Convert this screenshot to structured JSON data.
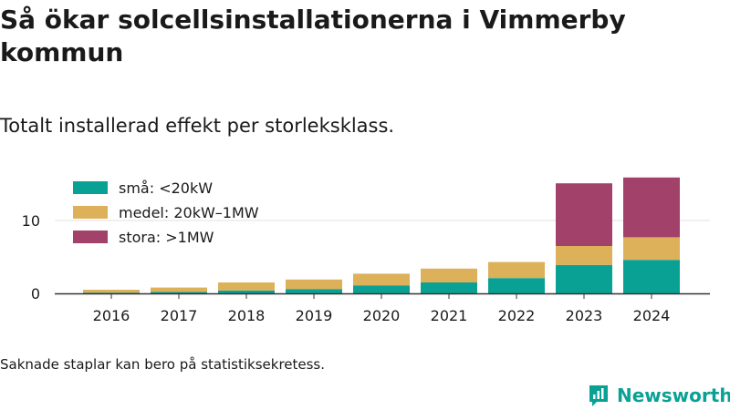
{
  "header": {
    "title": "Så ökar solcellsinstallationerna i Vimmerby kommun",
    "subtitle": "Totalt installerad effekt per storleksklass."
  },
  "footer": {
    "note": "Saknade staplar kan bero på statistiksekretess.",
    "brand": "Newsworthy"
  },
  "colors": {
    "small": "#0aa195",
    "medium": "#ddb05a",
    "large": "#a2426a"
  },
  "chart_data": {
    "type": "bar",
    "stacked": true,
    "categories": [
      "2016",
      "2017",
      "2018",
      "2019",
      "2020",
      "2021",
      "2022",
      "2023",
      "2024"
    ],
    "series": [
      {
        "name": "små: <20kW",
        "color": "#0aa195",
        "values": [
          0.1,
          0.2,
          0.4,
          0.6,
          1.1,
          1.5,
          2.1,
          3.9,
          4.6
        ]
      },
      {
        "name": "medel: 20kW–1MW",
        "color": "#ddb05a",
        "values": [
          0.4,
          0.6,
          1.1,
          1.3,
          1.6,
          1.9,
          2.2,
          2.6,
          3.1
        ]
      },
      {
        "name": "stora: >1MW",
        "color": "#a2426a",
        "values": [
          0,
          0,
          0,
          0,
          0,
          0,
          0,
          8.6,
          8.2
        ]
      }
    ],
    "yticks": [
      0,
      10
    ],
    "ylim": [
      0,
      16
    ],
    "grid": true,
    "legend_position": "top-left"
  }
}
